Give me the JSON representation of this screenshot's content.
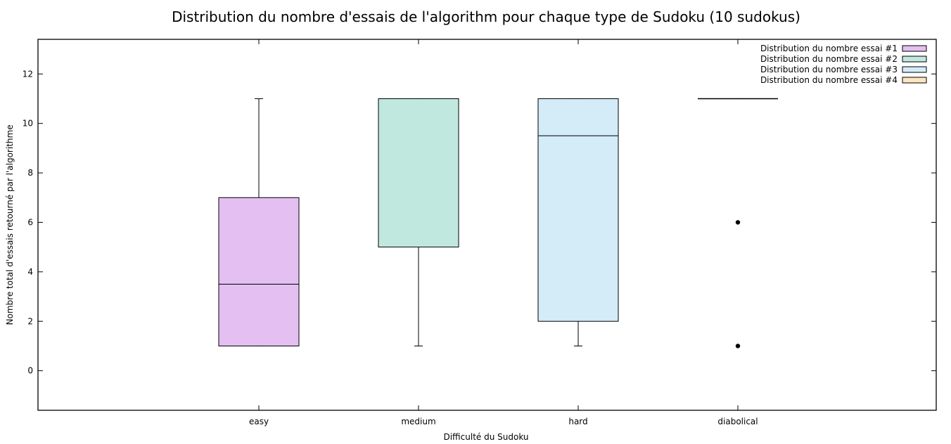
{
  "chart_data": {
    "type": "box",
    "title": "Distribution du nombre d'essais de l'algorithm pour chaque type de Sudoku (10 sudokus)",
    "xlabel": "Difficulté du Sudoku",
    "ylabel": "Nombre total d'essais retourné par l'algorithme",
    "ylim": [
      -1.6,
      13.4
    ],
    "yticks": [
      0,
      2,
      4,
      6,
      8,
      10,
      12
    ],
    "grid": false,
    "legend_position": "top-right",
    "categories": [
      "easy",
      "medium",
      "hard",
      "diabolical"
    ],
    "series": [
      {
        "name": "Distribution du nombre essai #1",
        "color": "#e3bff2",
        "whisker_low": 1,
        "q1": 1,
        "median": 3.5,
        "q3": 7,
        "whisker_high": 11,
        "outliers": []
      },
      {
        "name": "Distribution du nombre essai #2",
        "color": "#c0e8de",
        "whisker_low": 1,
        "q1": 5,
        "median": 11,
        "q3": 11,
        "whisker_high": 11,
        "outliers": []
      },
      {
        "name": "Distribution du nombre essai #3",
        "color": "#d4ebf8",
        "whisker_low": 1,
        "q1": 2,
        "median": 9.5,
        "q3": 11,
        "whisker_high": 11,
        "outliers": []
      },
      {
        "name": "Distribution du nombre essai #4",
        "color": "#fde5c0",
        "whisker_low": 11,
        "q1": 11,
        "median": 11,
        "q3": 11,
        "whisker_high": 11,
        "outliers": [
          6,
          1
        ]
      }
    ]
  }
}
